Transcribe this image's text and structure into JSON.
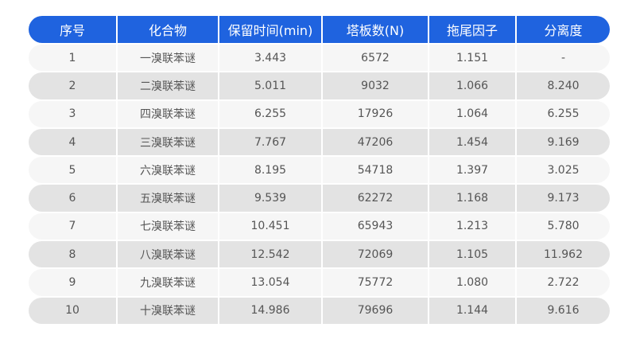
{
  "table": {
    "headers": [
      "序号",
      "化合物",
      "保留时间(min)",
      "塔板数(N)",
      "拖尾因子",
      "分离度"
    ],
    "rows": [
      [
        "1",
        "一溴联苯谜",
        "3.443",
        "6572",
        "1.151",
        "-"
      ],
      [
        "2",
        "二溴联苯谜",
        "5.011",
        "9032",
        "1.066",
        "8.240"
      ],
      [
        "3",
        "四溴联苯谜",
        "6.255",
        "17926",
        "1.064",
        "6.255"
      ],
      [
        "4",
        "三溴联苯谜",
        "7.767",
        "47206",
        "1.454",
        "9.169"
      ],
      [
        "5",
        "六溴联苯谜",
        "8.195",
        "54718",
        "1.397",
        "3.025"
      ],
      [
        "6",
        "五溴联苯谜",
        "9.539",
        "62272",
        "1.168",
        "9.173"
      ],
      [
        "7",
        "七溴联苯谜",
        "10.451",
        "65943",
        "1.213",
        "5.780"
      ],
      [
        "8",
        "八溴联苯谜",
        "12.542",
        "72069",
        "1.105",
        "11.962"
      ],
      [
        "9",
        "九溴联苯谜",
        "13.054",
        "75772",
        "1.080",
        "2.722"
      ],
      [
        "10",
        "十溴联苯谜",
        "14.986",
        "79696",
        "1.144",
        "9.616"
      ]
    ]
  },
  "colors": {
    "header": "#1f63df",
    "row_odd": "#f6f6f6",
    "row_even": "#e3e3e3"
  }
}
